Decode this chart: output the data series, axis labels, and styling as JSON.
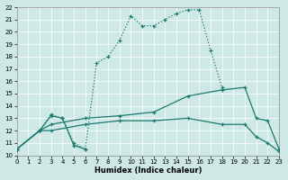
{
  "xlabel": "Humidex (Indice chaleur)",
  "xlim": [
    0,
    23
  ],
  "ylim": [
    10,
    22
  ],
  "xticks": [
    0,
    1,
    2,
    3,
    4,
    5,
    6,
    7,
    8,
    9,
    10,
    11,
    12,
    13,
    14,
    15,
    16,
    17,
    18,
    19,
    20,
    21,
    22,
    23
  ],
  "yticks": [
    10,
    11,
    12,
    13,
    14,
    15,
    16,
    17,
    18,
    19,
    20,
    21,
    22
  ],
  "bg_color": "#cde8e5",
  "line_color": "#1a7a6e",
  "series": [
    {
      "x": [
        2,
        3,
        4,
        5,
        6,
        7,
        8,
        9,
        10,
        11,
        12,
        13,
        14,
        15,
        16,
        17,
        18
      ],
      "y": [
        12.0,
        13.3,
        13.0,
        11.0,
        10.5,
        17.5,
        18.0,
        19.3,
        21.3,
        20.5,
        20.5,
        21.0,
        21.5,
        21.8,
        21.8,
        18.5,
        15.5
      ]
    },
    {
      "x": [
        0,
        2,
        3,
        6,
        9,
        12,
        15,
        18,
        20,
        21,
        22,
        23
      ],
      "y": [
        10.5,
        12.0,
        12.5,
        13.0,
        13.2,
        13.5,
        14.8,
        15.3,
        15.5,
        13.0,
        12.8,
        10.5
      ]
    },
    {
      "x": [
        0,
        2,
        3,
        6,
        9,
        12,
        15,
        18,
        20,
        21,
        22,
        23
      ],
      "y": [
        10.5,
        12.0,
        12.0,
        12.5,
        12.8,
        12.8,
        13.0,
        12.5,
        12.5,
        11.5,
        11.0,
        10.3
      ]
    },
    {
      "x": [
        0,
        2,
        3,
        4,
        5,
        6
      ],
      "y": [
        10.5,
        12.0,
        13.2,
        13.0,
        10.8,
        10.5
      ]
    },
    {
      "x": [
        6,
        7
      ],
      "y": [
        10.5,
        17.5
      ]
    }
  ]
}
